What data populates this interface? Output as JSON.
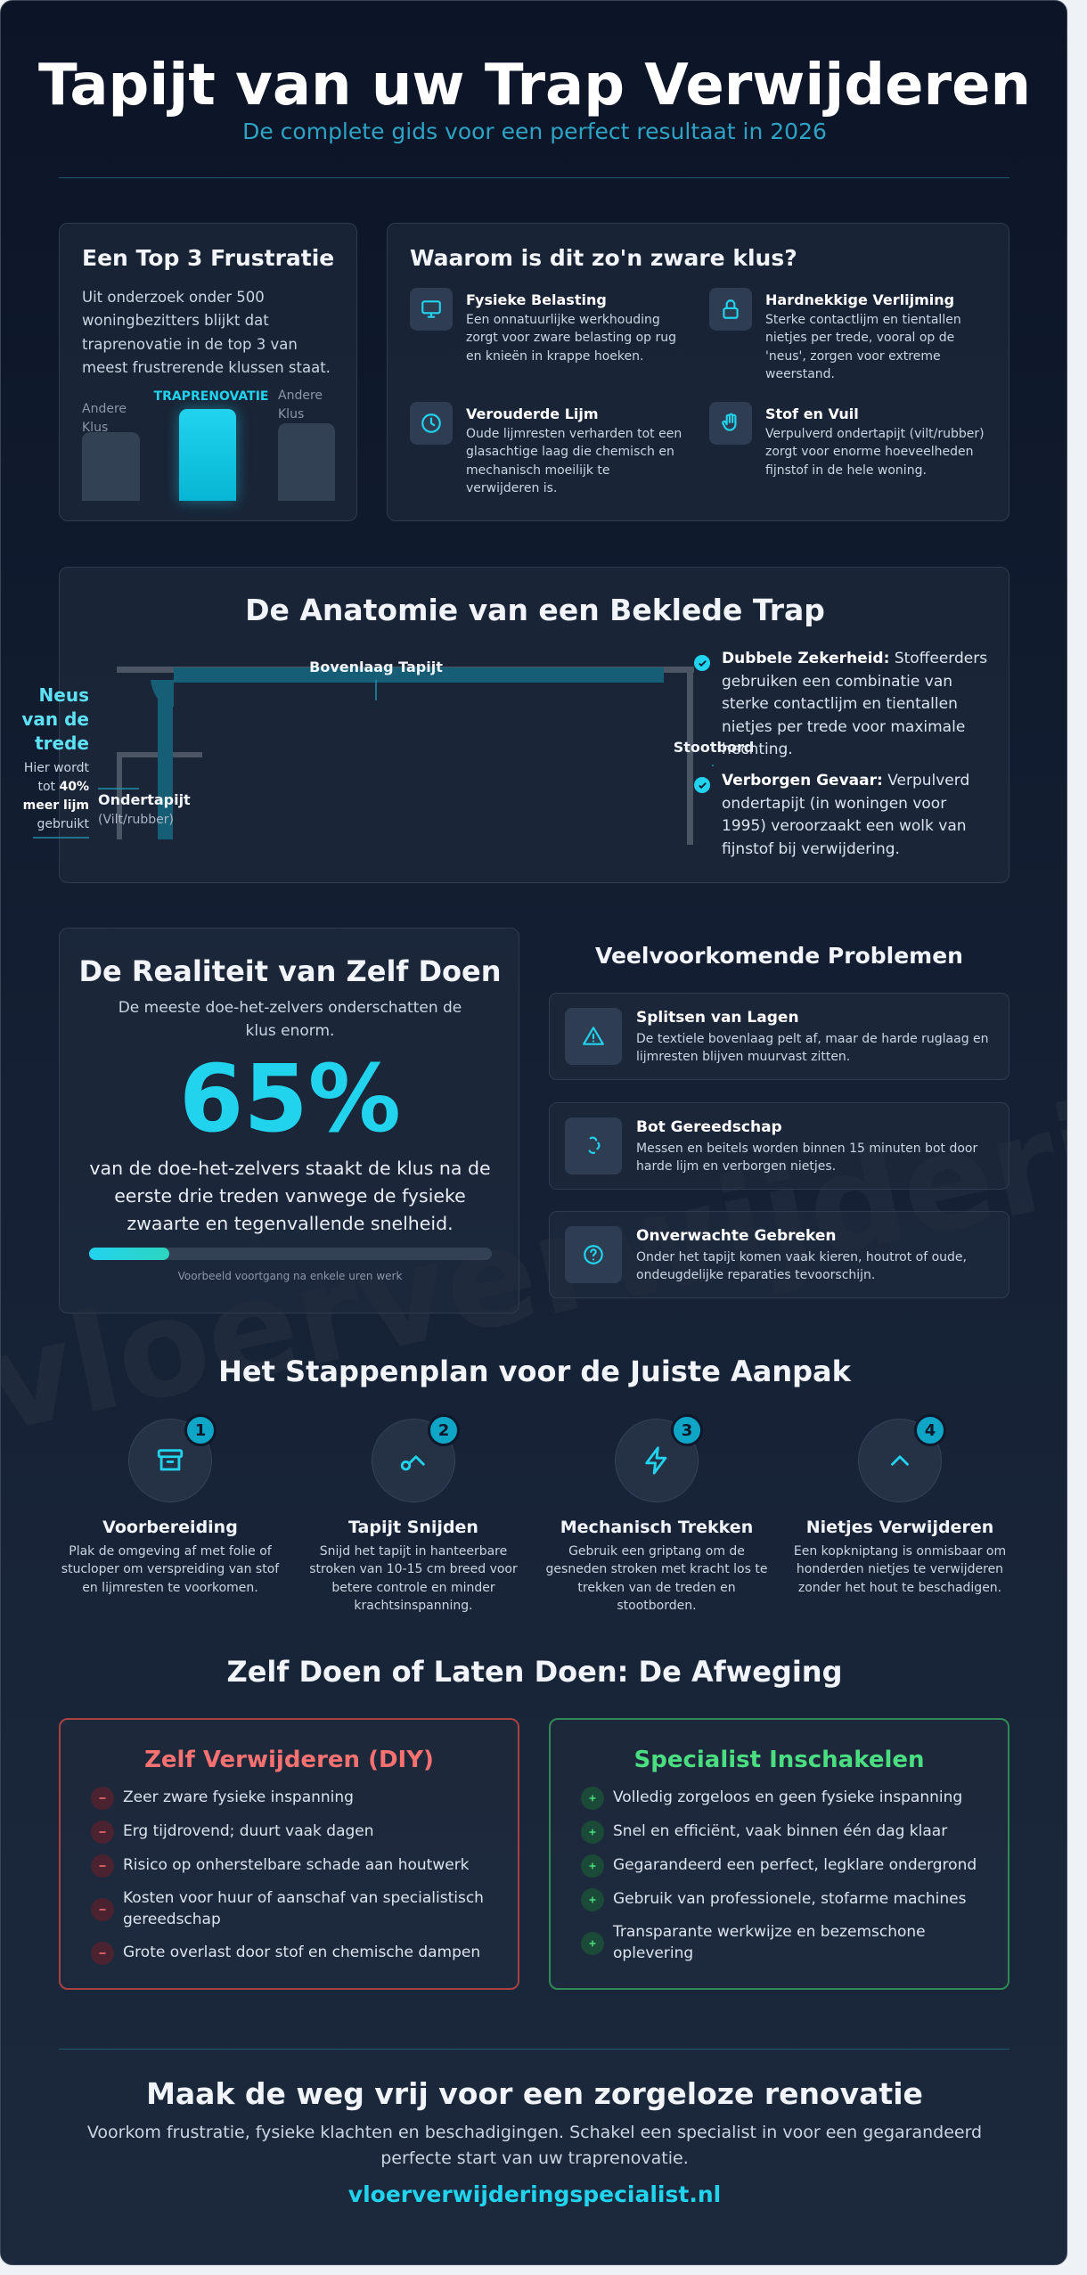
{
  "header": {
    "title": "Tapijt van uw Trap Verwijderen",
    "subtitle": "De complete gids voor een perfect resultaat in 2026"
  },
  "watermark": "vloerverwijderingspecialist",
  "frustration": {
    "title": "Een Top 3 Frustratie",
    "text": "Uit onderzoek onder 500 woningbezitters blijkt dat traprenovatie in de top 3 van meest frustrerende klussen staat.",
    "bars": [
      "Andere Klus",
      "TRAPRENOVATIE",
      "Andere Klus"
    ]
  },
  "reasons": {
    "title": "Waarom is dit zo'n zware klus?",
    "items": [
      {
        "title": "Fysieke Belasting",
        "text": "Een onnatuurlijke werkhouding zorgt voor zware belasting op rug en knieën in krappe hoeken."
      },
      {
        "title": "Hardnekkige Verlijming",
        "text": "Sterke contactlijm en tientallen nietjes per trede, vooral op de 'neus', zorgen voor extreme weerstand."
      },
      {
        "title": "Verouderde Lijm",
        "text": "Oude lijmresten verharden tot een glasachtige laag die chemisch en mechanisch moeilijk te verwijderen is."
      },
      {
        "title": "Stof en Vuil",
        "text": "Verpulverd ondertapijt (vilt/rubber) zorgt voor enorme hoeveelheden fijnstof in de hele woning."
      }
    ]
  },
  "anatomy": {
    "title": "De Anatomie van een Beklede Trap",
    "top_layer": "Bovenlaag Tapijt",
    "riser": "Stootbord",
    "underlay": "Ondertapijt",
    "underlay_note": "(Vilt/rubber)",
    "nose": "Neus van de trede",
    "nose_note": [
      "Hier wordt tot",
      "40% meer lijm",
      "gebruikt"
    ],
    "points": [
      {
        "label": "Dubbele Zekerheid:",
        "text": "Stoffeerders gebruiken een combinatie van sterke contactlijm en tientallen nietjes per trede voor maximale hechting."
      },
      {
        "label": "Verborgen Gevaar:",
        "text": "Verpulverd ondertapijt (in woningen voor 1995) veroorzaakt een wolk van fijnstof bij verwijdering."
      }
    ]
  },
  "reality": {
    "title": "De Realiteit van Zelf Doen",
    "subtitle": "De meeste doe-het-zelvers onderschatten de klus enorm.",
    "stat": "65%",
    "text": "van de doe-het-zelvers staakt de klus na de eerste drie treden vanwege de fysieke zwaarte en tegenvallende snelheid.",
    "caption": "Voorbeeld voortgang na enkele uren werk"
  },
  "problems": {
    "title": "Veelvoorkomende Problemen",
    "items": [
      {
        "title": "Splitsen van Lagen",
        "text": "De textiele bovenlaag pelt af, maar de harde ruglaag en lijmresten blijven muurvast zitten."
      },
      {
        "title": "Bot Gereedschap",
        "text": "Messen en beitels worden binnen 15 minuten bot door harde lijm en verborgen nietjes."
      },
      {
        "title": "Onverwachte Gebreken",
        "text": "Onder het tapijt komen vaak kieren, houtrot of oude, ondeugdelijke reparaties tevoorschijn."
      }
    ]
  },
  "steps": {
    "title": "Het Stappenplan voor de Juiste Aanpak",
    "items": [
      {
        "number": 1,
        "title": "Voorbereiding",
        "text": "Plak de omgeving af met folie of stucloper om verspreiding van stof en lijmresten te voorkomen."
      },
      {
        "number": 2,
        "title": "Tapijt Snijden",
        "text": "Snijd het tapijt in hanteerbare stroken van 10-15 cm breed voor betere controle en minder krachtsinspanning."
      },
      {
        "number": 3,
        "title": "Mechanisch Trekken",
        "text": "Gebruik een griptang om de gesneden stroken met kracht los te trekken van de treden en stootborden."
      },
      {
        "number": 4,
        "title": "Nietjes Verwijderen",
        "text": "Een kopkniptang is onmisbaar om honderden nietjes te verwijderen zonder het hout te beschadigen."
      }
    ]
  },
  "compare": {
    "title": "Zelf Doen of Laten Doen: De Afweging",
    "diy": {
      "title": "Zelf Verwijderen (DIY)",
      "items": [
        "Zeer zware fysieke inspanning",
        "Erg tijdrovend; duurt vaak dagen",
        "Risico op onherstelbare schade aan houtwerk",
        "Kosten voor huur of aanschaf van specialistisch gereedschap",
        "Grote overlast door stof en chemische dampen"
      ]
    },
    "pro": {
      "title": "Specialist Inschakelen",
      "items": [
        "Volledig zorgeloos en geen fysieke inspanning",
        "Snel en efficiënt, vaak binnen één dag klaar",
        "Gegarandeerd een perfect, legklare ondergrond",
        "Gebruik van professionele, stofarme machines",
        "Transparante werkwijze en bezemschone oplevering"
      ]
    }
  },
  "footer": {
    "title": "Maak de weg vrij voor een zorgeloze renovatie",
    "text": "Voorkom frustratie, fysieke klachten en beschadigingen. Schakel een specialist in voor een gegarandeerd perfecte start van uw traprenovatie.",
    "link": "vloerverwijderingspecialist.nl"
  }
}
